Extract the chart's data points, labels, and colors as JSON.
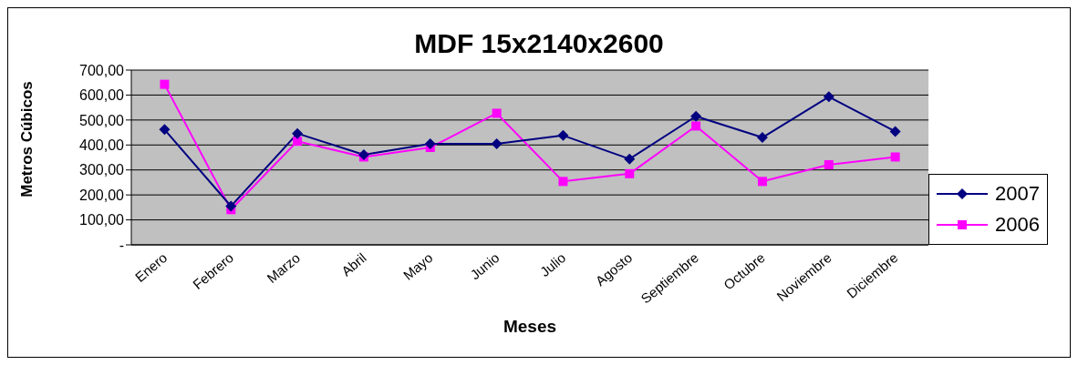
{
  "chart_data": {
    "type": "line",
    "title": "MDF 15x2140x2600",
    "xlabel": "Meses",
    "ylabel": "Metros Cúbicos",
    "categories": [
      "Enero",
      "Febrero",
      "Marzo",
      "Abril",
      "Mayo",
      "Junio",
      "Julio",
      "Agosto",
      "Septiembre",
      "Octubre",
      "Noviembre",
      "Diciembre"
    ],
    "series": [
      {
        "name": "2007",
        "color": "#000080",
        "marker": "diamond",
        "values": [
          462,
          155,
          446,
          361,
          405,
          405,
          438,
          344,
          515,
          430,
          593,
          454
        ]
      },
      {
        "name": "2006",
        "color": "#ff00ff",
        "marker": "square",
        "values": [
          643,
          141,
          415,
          352,
          390,
          527,
          254,
          285,
          476,
          254,
          321,
          352
        ]
      }
    ],
    "ylim": [
      0,
      700
    ],
    "yticks": [
      {
        "value": 0,
        "label": "-"
      },
      {
        "value": 100,
        "label": "100,00"
      },
      {
        "value": 200,
        "label": "200,00"
      },
      {
        "value": 300,
        "label": "300,00"
      },
      {
        "value": 400,
        "label": "400,00"
      },
      {
        "value": 500,
        "label": "500,00"
      },
      {
        "value": 600,
        "label": "600,00"
      },
      {
        "value": 700,
        "label": "700,00"
      }
    ],
    "grid": "y",
    "legend": "right"
  }
}
